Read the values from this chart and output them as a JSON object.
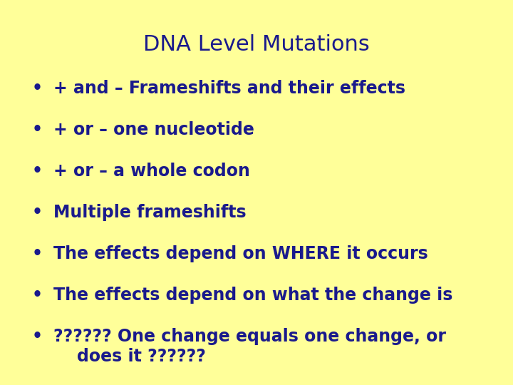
{
  "title": "DNA Level Mutations",
  "title_color": "#1a1a8c",
  "title_fontsize": 22,
  "background_color": "#ffff99",
  "text_color": "#1a1a8c",
  "bullet_char": "•",
  "bullet_fontsize": 17,
  "items": [
    "+ and – Frameshifts and their effects",
    "+ or – one nucleotide",
    "+ or – a whole codon",
    "Multiple frameshifts",
    "The effects depend on WHERE it occurs",
    "The effects depend on what the change is",
    "?????? One change equals one change, or\n    does it ??????"
  ],
  "figwidth": 7.2,
  "figheight": 5.4,
  "dpi": 100
}
